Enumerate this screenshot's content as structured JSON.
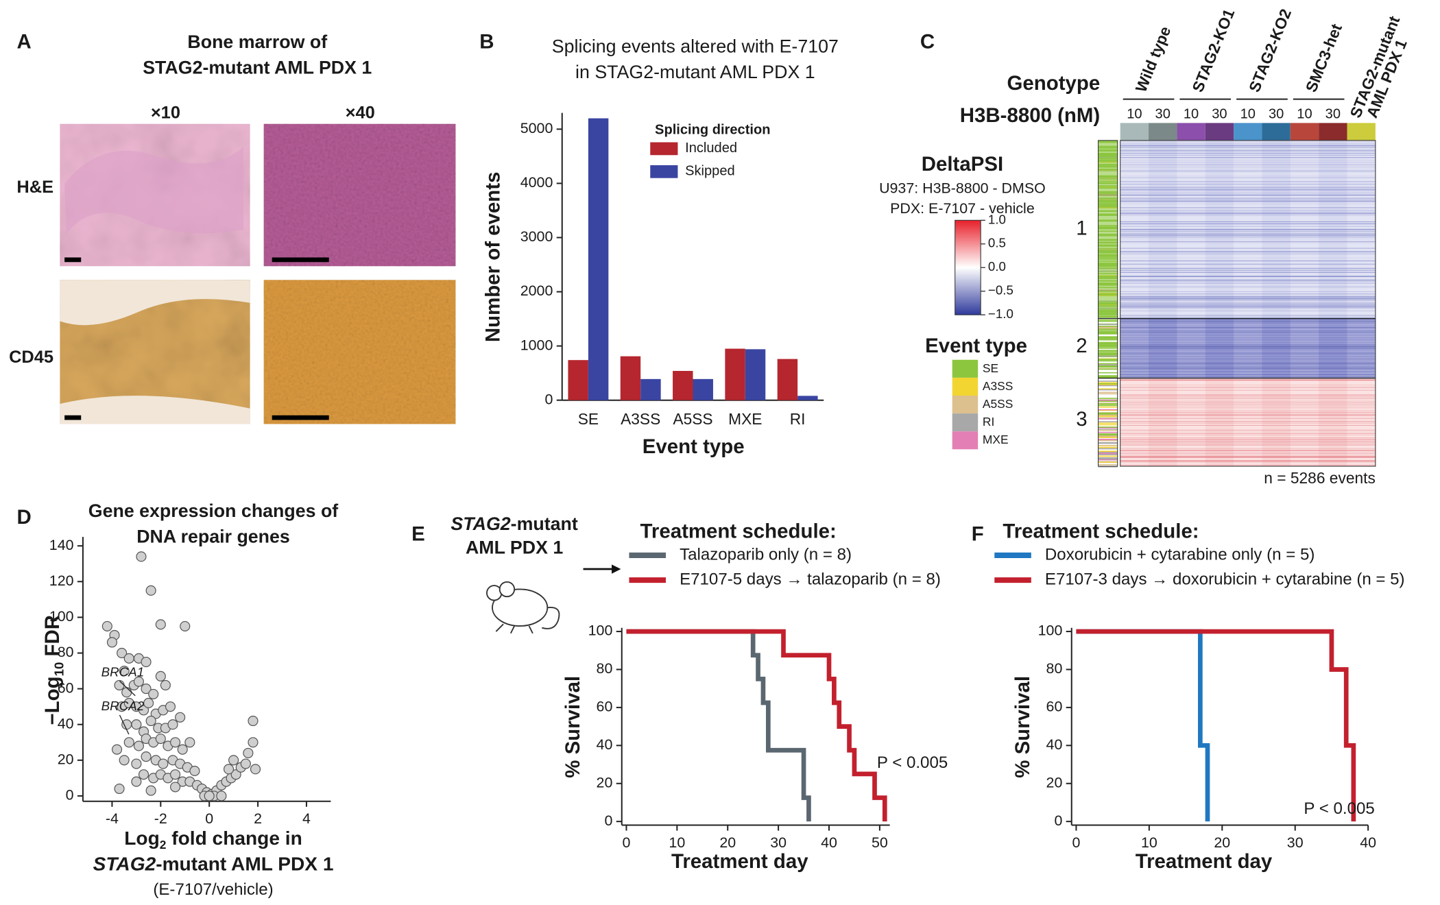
{
  "panel_labels": [
    "A",
    "B",
    "C",
    "D",
    "E",
    "F"
  ],
  "panel_a": {
    "title": [
      "Bone marrow of",
      "STAG2-mutant AML PDX 1"
    ],
    "columns": [
      "×10",
      "×40"
    ],
    "rows": [
      "H&E",
      "CD45"
    ]
  },
  "heatmap": {
    "row_title": "Genotype",
    "dose_title": "H3B-8800 (nM)",
    "groups": [
      "Wild type",
      "STAG2-KO1",
      "STAG2-KO2",
      "SMC3-het"
    ],
    "sample": [
      "STAG2-mutant",
      "AML PDX 1"
    ],
    "doses": [
      10,
      30,
      10,
      30,
      10,
      30,
      10,
      30
    ],
    "column_colors": [
      "#a9b9b9",
      "#7b8a88",
      "#8c4fab",
      "#6b3b82",
      "#4b93cb",
      "#2d6c99",
      "#b9463b",
      "#8b2b2b",
      "#cccc3c"
    ],
    "colorbar": {
      "title": "DeltaPSI",
      "subtitle": [
        "U937: H3B-8800 - DMSO",
        "PDX: E-7107 - vehicle"
      ],
      "ticks": [
        {
          "value": 1,
          "label": "1.0"
        },
        {
          "value": 0.5,
          "label": "0.5"
        },
        {
          "value": 0,
          "label": "0.0"
        },
        {
          "value": -0.5,
          "label": "−0.5"
        },
        {
          "value": -1,
          "label": "−1.0"
        }
      ]
    },
    "event_type": {
      "title": "Event  type",
      "labels": [
        "SE",
        "A3SS",
        "A5SS",
        "RI",
        "MXE"
      ],
      "colors": [
        "#8cc63f",
        "#f2d531",
        "#dcc08e",
        "#a8a8a8",
        "#e37fb4"
      ]
    },
    "clusters": [
      1,
      2,
      3
    ],
    "note": "n = 5286 events"
  },
  "chart_data": [
    {
      "type": "bar",
      "title": [
        "Splicing events altered with E-7107",
        "in STAG2-mutant AML PDX 1"
      ],
      "ylabel": "Number of events",
      "xlabel": "Event  type",
      "categories": [
        "SE",
        "A3SS",
        "A5SS",
        "MXE",
        "RI"
      ],
      "legend_title": "Splicing direction",
      "series": [
        {
          "name": "Included",
          "color": "#b5262e",
          "values": [
            740,
            810,
            540,
            950,
            760
          ]
        },
        {
          "name": "Skipped",
          "color": "#3a45a2",
          "values": [
            5200,
            390,
            390,
            940,
            80
          ]
        }
      ],
      "ylim": [
        0,
        5300
      ],
      "yticks": [
        0,
        1000,
        2000,
        3000,
        4000,
        5000
      ]
    },
    {
      "type": "scatter",
      "title": [
        "Gene expression changes of",
        "DNA repair genes"
      ],
      "ylabel": [
        "−Log",
        "10",
        "FDR"
      ],
      "xlabel": [
        [
          "Log",
          "2",
          " fold change in"
        ],
        [
          "STAG2",
          "-mutant AML PDX 1"
        ],
        "(E-7107/vehicle)"
      ],
      "annotations": [
        "BRCA1",
        "BRCA2"
      ],
      "color": "#cfcfcf",
      "x": [
        -2.8,
        -2.4,
        -1.0,
        -2.0,
        -4.2,
        -3.9,
        -3.6,
        -4.0,
        -3.3,
        -2.9,
        -2.6,
        -3.5,
        -3.7,
        -3.4,
        -3.1,
        -2.9,
        -2.6,
        -2.3,
        -2.0,
        -1.8,
        -3.6,
        -3.3,
        -3.0,
        -2.7,
        -2.5,
        -2.2,
        -1.9,
        -1.6,
        -3.4,
        -3.0,
        -2.7,
        -2.4,
        -2.1,
        -1.8,
        -1.5,
        -1.2,
        -3.3,
        -2.9,
        -2.6,
        -2.3,
        -2.0,
        -1.7,
        -1.4,
        -1.1,
        -0.8,
        -3.8,
        -3.5,
        -3.0,
        -2.6,
        -2.2,
        -1.9,
        -1.5,
        -1.2,
        -0.9,
        -0.6,
        -3.0,
        -2.7,
        -2.3,
        -2.0,
        -1.7,
        -1.4,
        -1.1,
        -0.8,
        -0.5,
        -0.3,
        -0.1,
        0.1,
        0.3,
        0.5,
        0.7,
        0.9,
        1.1,
        1.3,
        1.5,
        1.6,
        1.8,
        1.8,
        1.9,
        1.0,
        0.8,
        0.2,
        -0.2,
        0,
        0.5,
        -1.4,
        -2.4,
        -3.7
      ],
      "values": [
        134,
        115,
        95,
        96,
        95,
        90,
        80,
        86,
        77,
        77,
        75,
        70,
        62,
        58,
        62,
        64,
        60,
        57,
        67,
        62,
        50,
        52,
        50,
        48,
        52,
        46,
        48,
        50,
        40,
        40,
        36,
        42,
        38,
        38,
        40,
        44,
        30,
        28,
        32,
        30,
        32,
        28,
        30,
        26,
        30,
        26,
        20,
        18,
        22,
        20,
        18,
        20,
        18,
        16,
        14,
        8,
        12,
        10,
        12,
        10,
        12,
        8,
        8,
        6,
        4,
        2,
        1,
        3,
        6,
        8,
        10,
        12,
        16,
        18,
        24,
        42,
        30,
        15,
        20,
        15,
        0,
        0,
        0,
        0,
        5,
        3,
        4
      ],
      "xlim": [
        -5.2,
        5
      ],
      "xticks": [
        -4,
        -2,
        0,
        2,
        4
      ],
      "ylim": [
        -3,
        145
      ],
      "yticks": [
        0,
        20,
        40,
        60,
        80,
        100,
        120,
        140
      ]
    },
    {
      "type": "step",
      "heading": [
        [
          "STAG2",
          "-mutant"
        ],
        "AML PDX 1"
      ],
      "legend_title": "Treatment schedule:",
      "ylabel": "% Survival",
      "xlabel": "Treatment day",
      "annotation": "P < 0.005",
      "series": [
        {
          "name": "Talazoparib  only (n = 8)",
          "color": "#5b6770",
          "x": [
            0,
            25,
            26,
            27,
            28,
            35,
            36
          ],
          "values": [
            100,
            87.5,
            75,
            62.5,
            37.5,
            12.5,
            0
          ]
        },
        {
          "name": "E7107-5 days → talazoparib (n = 8)",
          "color": "#c3202e",
          "x": [
            0,
            31,
            40,
            41,
            42,
            44,
            45,
            49,
            51
          ],
          "values": [
            100,
            87.5,
            75,
            62.5,
            50,
            37.5,
            25,
            12.5,
            0
          ]
        }
      ],
      "xlim": [
        0,
        52
      ],
      "xticks": [
        0,
        10,
        20,
        30,
        40,
        50
      ],
      "ylim": [
        0,
        100
      ],
      "yticks": [
        0,
        20,
        40,
        60,
        80,
        100
      ]
    },
    {
      "type": "step",
      "legend_title": "Treatment schedule:",
      "ylabel": "% Survival",
      "xlabel": "Treatment day",
      "annotation": "P < 0.005",
      "series": [
        {
          "name": "Doxorubicin + cytarabine only (n = 5)",
          "color": "#1f78c1",
          "x": [
            0,
            17,
            18
          ],
          "values": [
            100,
            40,
            0
          ]
        },
        {
          "name": "E7107-3 days → doxorubicin + cytarabine (n = 5)",
          "color": "#c3202e",
          "x": [
            0,
            35,
            37,
            38
          ],
          "values": [
            100,
            80,
            40,
            0
          ]
        }
      ],
      "xlim": [
        0,
        40
      ],
      "xticks": [
        0,
        10,
        20,
        30,
        40
      ],
      "ylim": [
        0,
        100
      ],
      "yticks": [
        0,
        20,
        40,
        60,
        80,
        100
      ]
    }
  ]
}
